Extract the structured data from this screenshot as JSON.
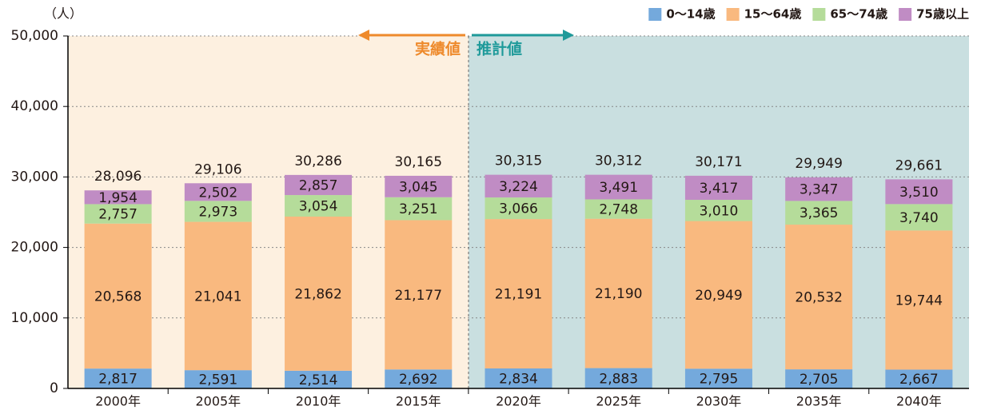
{
  "chart_data": {
    "type": "stacked_bar",
    "unit_label": "（人）",
    "annotations": [
      "実績値",
      "推計値"
    ],
    "categories": [
      "2000年",
      "2005年",
      "2010年",
      "2015年",
      "2020年",
      "2025年",
      "2030年",
      "2035年",
      "2040年"
    ],
    "series": [
      {
        "name": "0〜14歳",
        "color": "#74a9dc",
        "values": [
          2817,
          2591,
          2514,
          2692,
          2834,
          2883,
          2795,
          2705,
          2667
        ],
        "value_labels": [
          "2,817",
          "2,591",
          "2,514",
          "2,692",
          "2,834",
          "2,883",
          "2,795",
          "2,705",
          "2,667"
        ]
      },
      {
        "name": "15〜64歳",
        "color": "#f9b97f",
        "values": [
          20568,
          21041,
          21862,
          21177,
          21191,
          21190,
          20949,
          20532,
          19744
        ],
        "value_labels": [
          "20,568",
          "21,041",
          "21,862",
          "21,177",
          "21,191",
          "21,190",
          "20,949",
          "20,532",
          "19,744"
        ]
      },
      {
        "name": "65〜74歳",
        "color": "#b5dc9a",
        "values": [
          2757,
          2973,
          3054,
          3251,
          3066,
          2748,
          3010,
          3365,
          3740
        ],
        "value_labels": [
          "2,757",
          "2,973",
          "3,054",
          "3,251",
          "3,066",
          "2,748",
          "3,010",
          "3,365",
          "3,740"
        ]
      },
      {
        "name": "75歳以上",
        "color": "#c08cc4",
        "values": [
          1954,
          2502,
          2857,
          3045,
          3224,
          3491,
          3417,
          3347,
          3510
        ],
        "value_labels": [
          "1,954",
          "2,502",
          "2,857",
          "3,045",
          "3,224",
          "3,491",
          "3,417",
          "3,347",
          "3,510"
        ]
      }
    ],
    "totals": [
      28096,
      29106,
      30286,
      30165,
      30315,
      30312,
      30171,
      29949,
      29661
    ],
    "total_labels": [
      "28,096",
      "29,106",
      "30,286",
      "30,165",
      "30,315",
      "30,312",
      "30,171",
      "29,949",
      "29,661"
    ],
    "ylim": [
      0,
      50000
    ],
    "yticks": [
      0,
      {
        "value": 10000,
        "label": "10,000"
      },
      {
        "value": 20000,
        "label": "20,000"
      },
      {
        "value": 30000,
        "label": "30,000"
      },
      {
        "value": 40000,
        "label": "40,000"
      },
      {
        "value": 50000,
        "label": "50,000"
      }
    ],
    "grid": true
  }
}
